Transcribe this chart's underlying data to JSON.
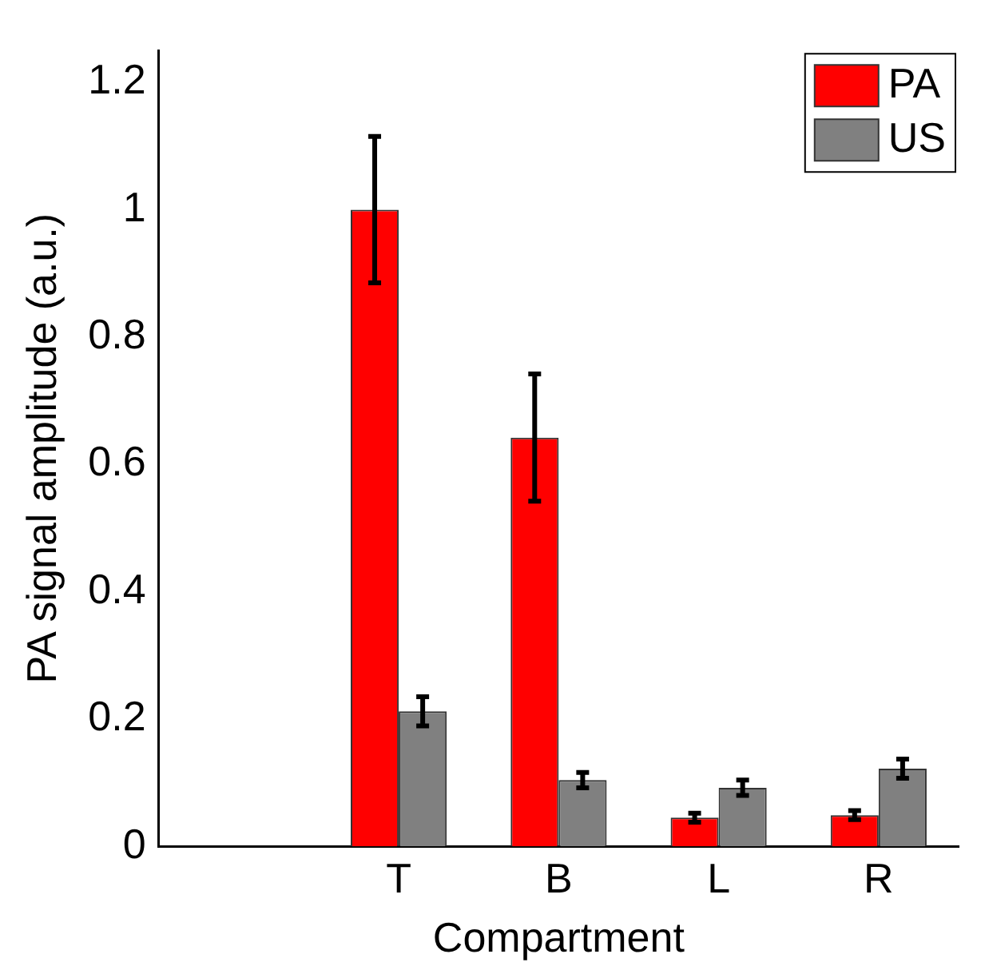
{
  "chart_data": {
    "type": "bar",
    "xlabel": "Compartment",
    "ylabel": "PA signal amplitude (a.u.)",
    "categories": [
      null,
      "T",
      "B",
      "L",
      "R"
    ],
    "series": [
      {
        "name": "PA",
        "color": "#ff0000",
        "values": [
          null,
          1.0,
          0.642,
          0.045,
          0.049
        ],
        "errors": [
          null,
          0.115,
          0.1,
          0.007,
          0.007
        ]
      },
      {
        "name": "US",
        "color": "#808080",
        "values": [
          null,
          0.212,
          0.104,
          0.092,
          0.122
        ],
        "errors": [
          null,
          0.023,
          0.012,
          0.012,
          0.015
        ]
      }
    ],
    "ylim": [
      0,
      1.25
    ],
    "yticks": [
      0,
      0.2,
      0.4,
      0.6,
      0.8,
      1,
      1.2
    ],
    "grid": false,
    "legend": "top right"
  }
}
